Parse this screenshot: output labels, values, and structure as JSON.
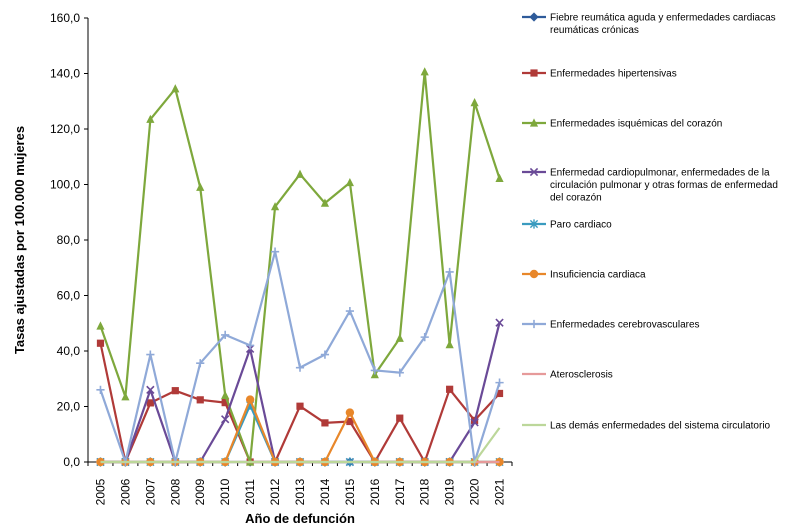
{
  "chart_data": {
    "type": "line",
    "title": "",
    "xlabel": "Año de defunción",
    "ylabel": "Tasas ajustadas por 100.000 mujeres",
    "ylim": [
      0,
      160
    ],
    "yticks": [
      "0,0",
      "20,0",
      "40,0",
      "60,0",
      "80,0",
      "100,0",
      "120,0",
      "140,0",
      "160,0"
    ],
    "categories": [
      "2005",
      "2006",
      "2007",
      "2008",
      "2009",
      "2010",
      "2011",
      "2012",
      "2013",
      "2014",
      "2015",
      "2016",
      "2017",
      "2018",
      "2019",
      "2020",
      "2021"
    ],
    "grid": false,
    "legend_position": "right",
    "series": [
      {
        "name": "Fiebre reumática aguda y enfermedades cardiacas reumáticas crónicas",
        "color": "#2e5b9a",
        "marker": "diamond",
        "values": [
          0,
          0,
          0,
          0,
          0,
          0,
          0,
          0,
          0,
          0,
          0,
          0,
          0,
          0,
          0,
          0,
          0
        ]
      },
      {
        "name": "Enfermedades hipertensivas",
        "color": "#b03a38",
        "marker": "square",
        "values": [
          42.8,
          0,
          21.3,
          25.7,
          22.4,
          21.4,
          0,
          0,
          20.1,
          14.1,
          14.6,
          0,
          15.8,
          0,
          26.2,
          15.0,
          24.7
        ]
      },
      {
        "name": "Enfermedades isquémicas del corazón",
        "color": "#7ea83c",
        "marker": "triangle",
        "values": [
          49.0,
          23.5,
          123.5,
          134.5,
          99.0,
          24.0,
          0,
          92.0,
          103.7,
          93.3,
          100.7,
          31.5,
          44.6,
          140.6,
          42.3,
          129.5,
          102.2
        ]
      },
      {
        "name": "Enfermedad cardiopulmonar, enfermedades de la circulación pulmonar y otras formas de enfermedad del corazón",
        "color": "#6a4a97",
        "marker": "x",
        "values": [
          0,
          0,
          26.0,
          0,
          0,
          15.4,
          40.8,
          0,
          0,
          0,
          0,
          0,
          0,
          0,
          0,
          14.3,
          50.2
        ]
      },
      {
        "name": "Paro cardiaco",
        "color": "#3a9bbf",
        "marker": "star",
        "values": [
          0,
          0,
          0,
          0,
          0,
          0,
          20.5,
          0,
          0,
          0,
          0,
          0,
          0,
          0,
          0,
          0,
          0
        ]
      },
      {
        "name": "Insuficiencia cardiaca",
        "color": "#e8872a",
        "marker": "circle",
        "values": [
          0,
          0,
          0,
          0,
          0,
          0,
          22.5,
          0,
          0,
          0,
          17.8,
          0,
          0,
          0,
          0,
          0,
          0
        ]
      },
      {
        "name": "Enfermedades cerebrovasculares",
        "color": "#8fa9d8",
        "marker": "plus",
        "values": [
          26.0,
          0,
          38.7,
          0,
          35.6,
          45.8,
          42.0,
          75.8,
          34.0,
          38.7,
          54.4,
          33.0,
          32.2,
          45.0,
          68.5,
          0,
          28.6
        ]
      },
      {
        "name": "Aterosclerosis",
        "color": "#e69a9a",
        "marker": "none",
        "values": [
          0,
          0,
          0,
          0,
          0,
          0,
          0,
          0,
          0,
          0,
          0,
          0,
          0,
          0,
          0,
          0,
          0
        ]
      },
      {
        "name": "Las demás enfermedades del sistema circulatorio",
        "color": "#bcd79a",
        "marker": "none",
        "values": [
          0,
          0,
          0,
          0,
          0,
          0,
          0,
          0,
          0,
          0,
          0,
          0,
          0,
          0,
          0,
          0,
          12.3
        ]
      }
    ]
  }
}
